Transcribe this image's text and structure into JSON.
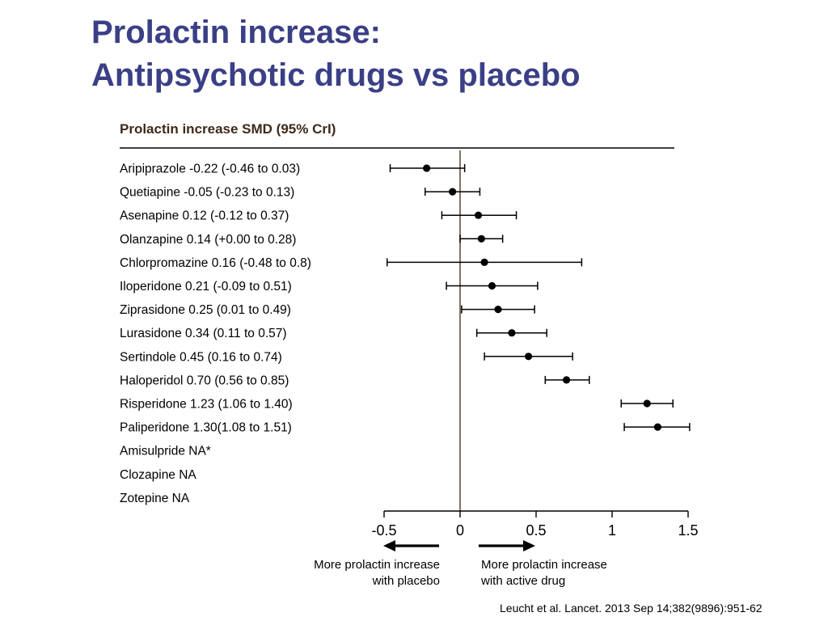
{
  "title": {
    "line1": "Prolactin increase:",
    "line2": "Antipsychotic drugs vs placebo"
  },
  "header": "Prolactin increase SMD (95% CrI)",
  "citation": "Leucht et al. Lancet. 2013 Sep 14;382(9896):951-62",
  "colors": {
    "title": "#3b3f86",
    "header": "#3d2a1a",
    "zero_line": "#5a4530",
    "marks": "#000000"
  },
  "chart_data": {
    "type": "forest",
    "x_ticks": [
      "-0.5",
      "0",
      "0.5",
      "1",
      "1.5"
    ],
    "xlim": [
      -0.5,
      1.5
    ],
    "reference_line": 0,
    "rows": [
      {
        "label": "Aripiprazole -0.22 (-0.46 to 0.03)",
        "estimate": -0.22,
        "lower": -0.46,
        "upper": 0.03
      },
      {
        "label": "Quetiapine -0.05 (-0.23 to 0.13)",
        "estimate": -0.05,
        "lower": -0.23,
        "upper": 0.13
      },
      {
        "label": "Asenapine 0.12 (-0.12 to 0.37)",
        "estimate": 0.12,
        "lower": -0.12,
        "upper": 0.37
      },
      {
        "label": "Olanzapine 0.14 (+0.00 to 0.28)",
        "estimate": 0.14,
        "lower": 0.0,
        "upper": 0.28
      },
      {
        "label": "Chlorpromazine 0.16 (-0.48 to 0.8)",
        "estimate": 0.16,
        "lower": -0.48,
        "upper": 0.8
      },
      {
        "label": "Iloperidone 0.21 (-0.09 to 0.51)",
        "estimate": 0.21,
        "lower": -0.09,
        "upper": 0.51
      },
      {
        "label": "Ziprasidone 0.25 (0.01 to 0.49)",
        "estimate": 0.25,
        "lower": 0.01,
        "upper": 0.49
      },
      {
        "label": "Lurasidone 0.34 (0.11 to 0.57)",
        "estimate": 0.34,
        "lower": 0.11,
        "upper": 0.57
      },
      {
        "label": "Sertindole 0.45 (0.16 to 0.74)",
        "estimate": 0.45,
        "lower": 0.16,
        "upper": 0.74
      },
      {
        "label": "Haloperidol 0.70 (0.56 to 0.85)",
        "estimate": 0.7,
        "lower": 0.56,
        "upper": 0.85
      },
      {
        "label": "Risperidone 1.23 (1.06 to 1.40)",
        "estimate": 1.23,
        "lower": 1.06,
        "upper": 1.4
      },
      {
        "label": "Paliperidone 1.30(1.08 to 1.51)",
        "estimate": 1.3,
        "lower": 1.08,
        "upper": 1.51
      },
      {
        "label": "Amisulpride NA*",
        "estimate": null,
        "lower": null,
        "upper": null
      },
      {
        "label": "Clozapine NA",
        "estimate": null,
        "lower": null,
        "upper": null
      },
      {
        "label": "Zotepine NA",
        "estimate": null,
        "lower": null,
        "upper": null
      }
    ],
    "direction_labels": {
      "left": [
        "More prolactin increase",
        "with placebo"
      ],
      "right": [
        "More prolactin increase",
        "with active drug"
      ]
    }
  }
}
